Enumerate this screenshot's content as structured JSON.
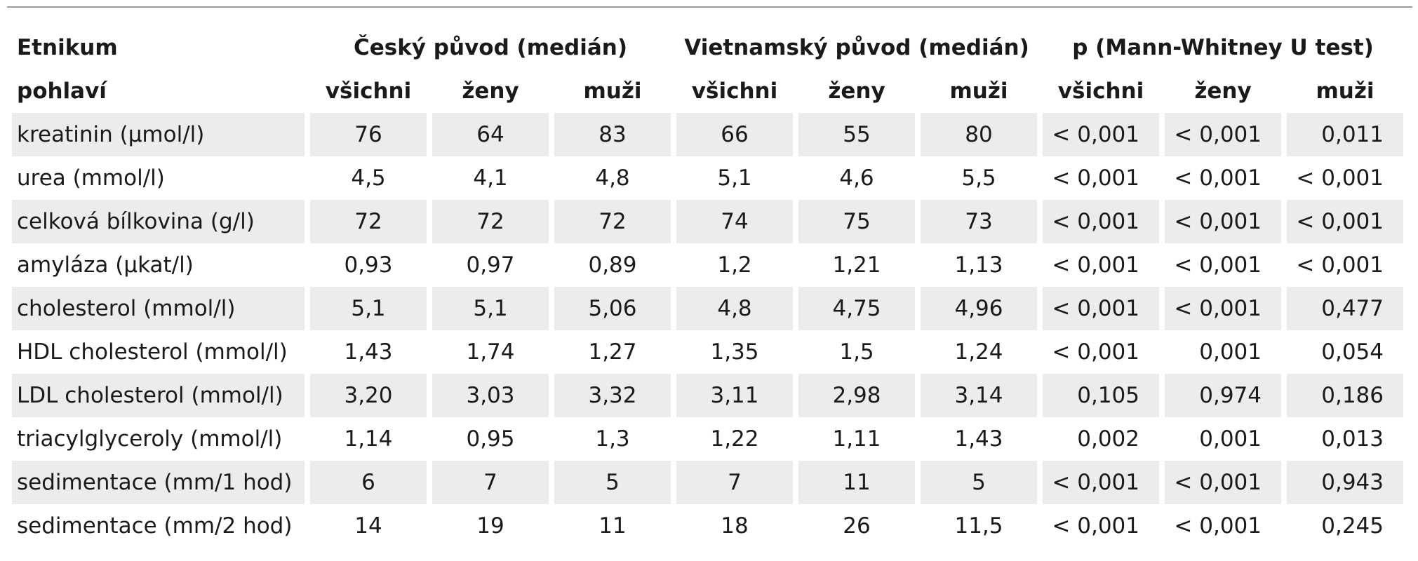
{
  "header": {
    "row1": {
      "label": "Etnikum",
      "group_czech": "Český původ (medián)",
      "group_viet": "Vietnamský původ (medián)",
      "group_p": "p (Mann-Whitney U test)"
    },
    "row2": {
      "label": "pohlaví",
      "cols": [
        "všichni",
        "ženy",
        "muži",
        "všichni",
        "ženy",
        "muži",
        "všichni",
        "ženy",
        "muži"
      ]
    }
  },
  "rows": [
    {
      "label": "kreatinin (µmol/l)",
      "values": [
        "76",
        "64",
        "83",
        "66",
        "55",
        "80",
        "< 0,001",
        "< 0,001",
        "0,011"
      ]
    },
    {
      "label": "urea (mmol/l)",
      "values": [
        "4,5",
        "4,1",
        "4,8",
        "5,1",
        "4,6",
        "5,5",
        "< 0,001",
        "< 0,001",
        "< 0,001"
      ]
    },
    {
      "label": "celková bílkovina (g/l)",
      "values": [
        "72",
        "72",
        "72",
        "74",
        "75",
        "73",
        "< 0,001",
        "< 0,001",
        "< 0,001"
      ]
    },
    {
      "label": "amyláza (µkat/l)",
      "values": [
        "0,93",
        "0,97",
        "0,89",
        "1,2",
        "1,21",
        "1,13",
        "< 0,001",
        "< 0,001",
        "< 0,001"
      ]
    },
    {
      "label": "cholesterol (mmol/l)",
      "values": [
        "5,1",
        "5,1",
        "5,06",
        "4,8",
        "4,75",
        "4,96",
        "< 0,001",
        "< 0,001",
        "0,477"
      ]
    },
    {
      "label": "HDL cholesterol (mmol/l)",
      "values": [
        "1,43",
        "1,74",
        "1,27",
        "1,35",
        "1,5",
        "1,24",
        "< 0,001",
        "0,001",
        "0,054"
      ]
    },
    {
      "label": "LDL cholesterol (mmol/l)",
      "values": [
        "3,20",
        "3,03",
        "3,32",
        "3,11",
        "2,98",
        "3,14",
        "0,105",
        "0,974",
        "0,186"
      ]
    },
    {
      "label": "triacylglyceroly (mmol/l)",
      "values": [
        "1,14",
        "0,95",
        "1,3",
        "1,22",
        "1,11",
        "1,43",
        "0,002",
        "0,001",
        "0,013"
      ]
    },
    {
      "label": "sedimentace (mm/1 hod)",
      "values": [
        "6",
        "7",
        "5",
        "7",
        "11",
        "5",
        "< 0,001",
        "< 0,001",
        "0,943"
      ]
    },
    {
      "label": "sedimentace (mm/2 hod)",
      "values": [
        "14",
        "19",
        "11",
        "18",
        "26",
        "11,5",
        "< 0,001",
        "< 0,001",
        "0,245"
      ]
    }
  ],
  "colors": {
    "stripe": "#ececec",
    "rule": "#9a9a9a"
  }
}
